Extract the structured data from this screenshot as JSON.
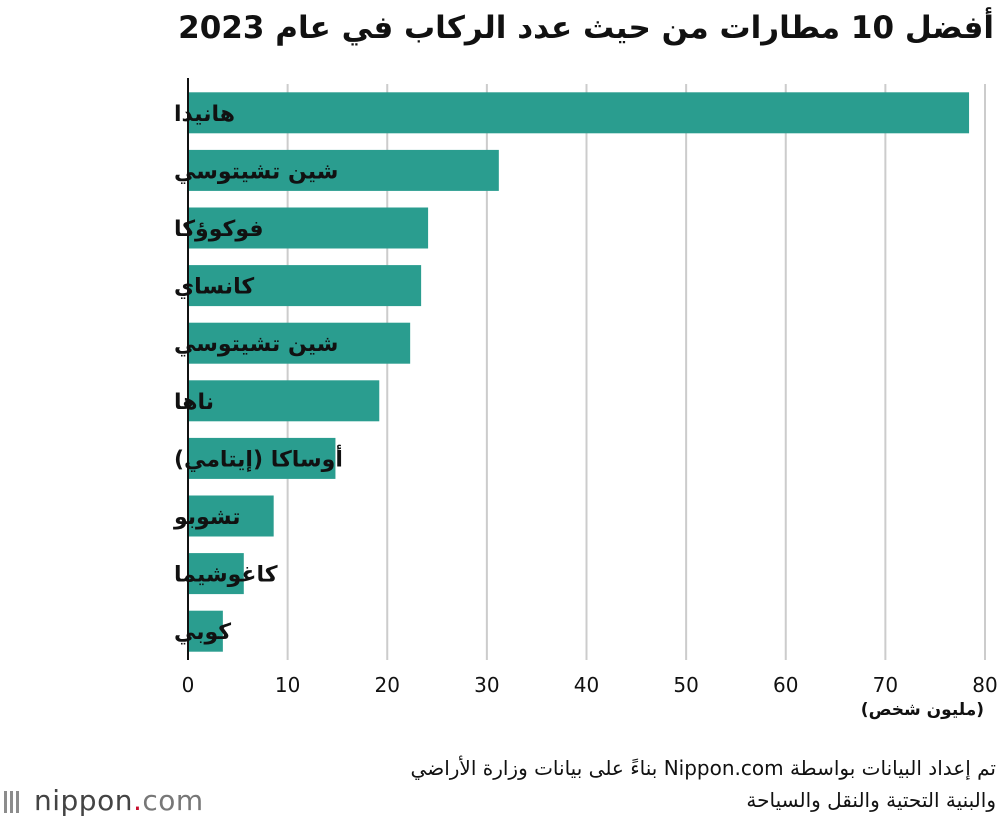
{
  "chart_data": {
    "type": "bar",
    "orientation": "horizontal",
    "title": "أفضل 10 مطارات من حيث عدد الركاب في عام 2023",
    "categories": [
      "هانيدا",
      "شين تشيتوسي",
      "فوكوؤكا",
      "كانساي",
      "شين تشيتوسي",
      "ناها",
      "أوساكا (إيتامي)",
      "تشوبو",
      "كاغوشيما",
      "كوبي"
    ],
    "values": [
      78.4,
      31.2,
      24.1,
      23.4,
      22.3,
      19.2,
      14.8,
      8.6,
      5.6,
      3.5
    ],
    "xlim": [
      0,
      80
    ],
    "xticks": [
      "0",
      "10",
      "20",
      "30",
      "40",
      "50",
      "60",
      "70",
      "80"
    ],
    "xlabel": "(مليون شخص)",
    "ylabel": "",
    "grid": true,
    "bar_color": "#2a9d8f",
    "grid_color": "#cccccc"
  },
  "source_line1": "تم إعداد البيانات بواسطة Nippon.com بناءً على بيانات وزارة الأراضي",
  "source_line2": "والبنية التحتية والنقل والسياحة",
  "logo": {
    "name": "nippon",
    "dot": ".",
    "suffix": "com"
  }
}
